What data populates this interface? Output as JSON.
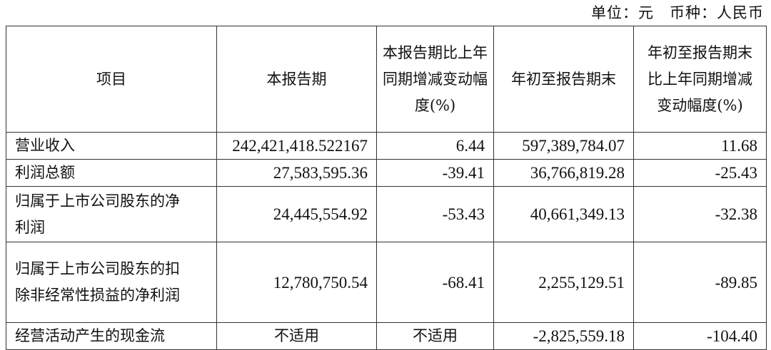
{
  "unit_line": "单位：元　币种：人民币",
  "headers": [
    "项目",
    "本报告期",
    "本报告期比上年同期增减变动幅度(%)",
    "年初至报告期末",
    "年初至报告期末比上年同期增减变动幅度(%)"
  ],
  "rows": [
    {
      "item": "营业收入",
      "current": "242,421,418.522167",
      "current_change": "6.44",
      "ytd": "597,389,784.07",
      "ytd_change": "11.68"
    },
    {
      "item": "利润总额",
      "current": "27,583,595.36",
      "current_change": "-39.41",
      "ytd": "36,766,819.28",
      "ytd_change": "-25.43"
    },
    {
      "item": "归属于上市公司股东的净利润",
      "current": "24,445,554.92",
      "current_change": "-53.43",
      "ytd": "40,661,349.13",
      "ytd_change": "-32.38"
    },
    {
      "item": "归属于上市公司股东的扣除非经常性损益的净利润",
      "current": "12,780,750.54",
      "current_change": "-68.41",
      "ytd": "2,255,129.51",
      "ytd_change": "-89.85"
    },
    {
      "item": "经营活动产生的现金流",
      "current": "不适用",
      "current_change": "不适用",
      "ytd": "-2,825,559.18",
      "ytd_change": "-104.40"
    }
  ]
}
